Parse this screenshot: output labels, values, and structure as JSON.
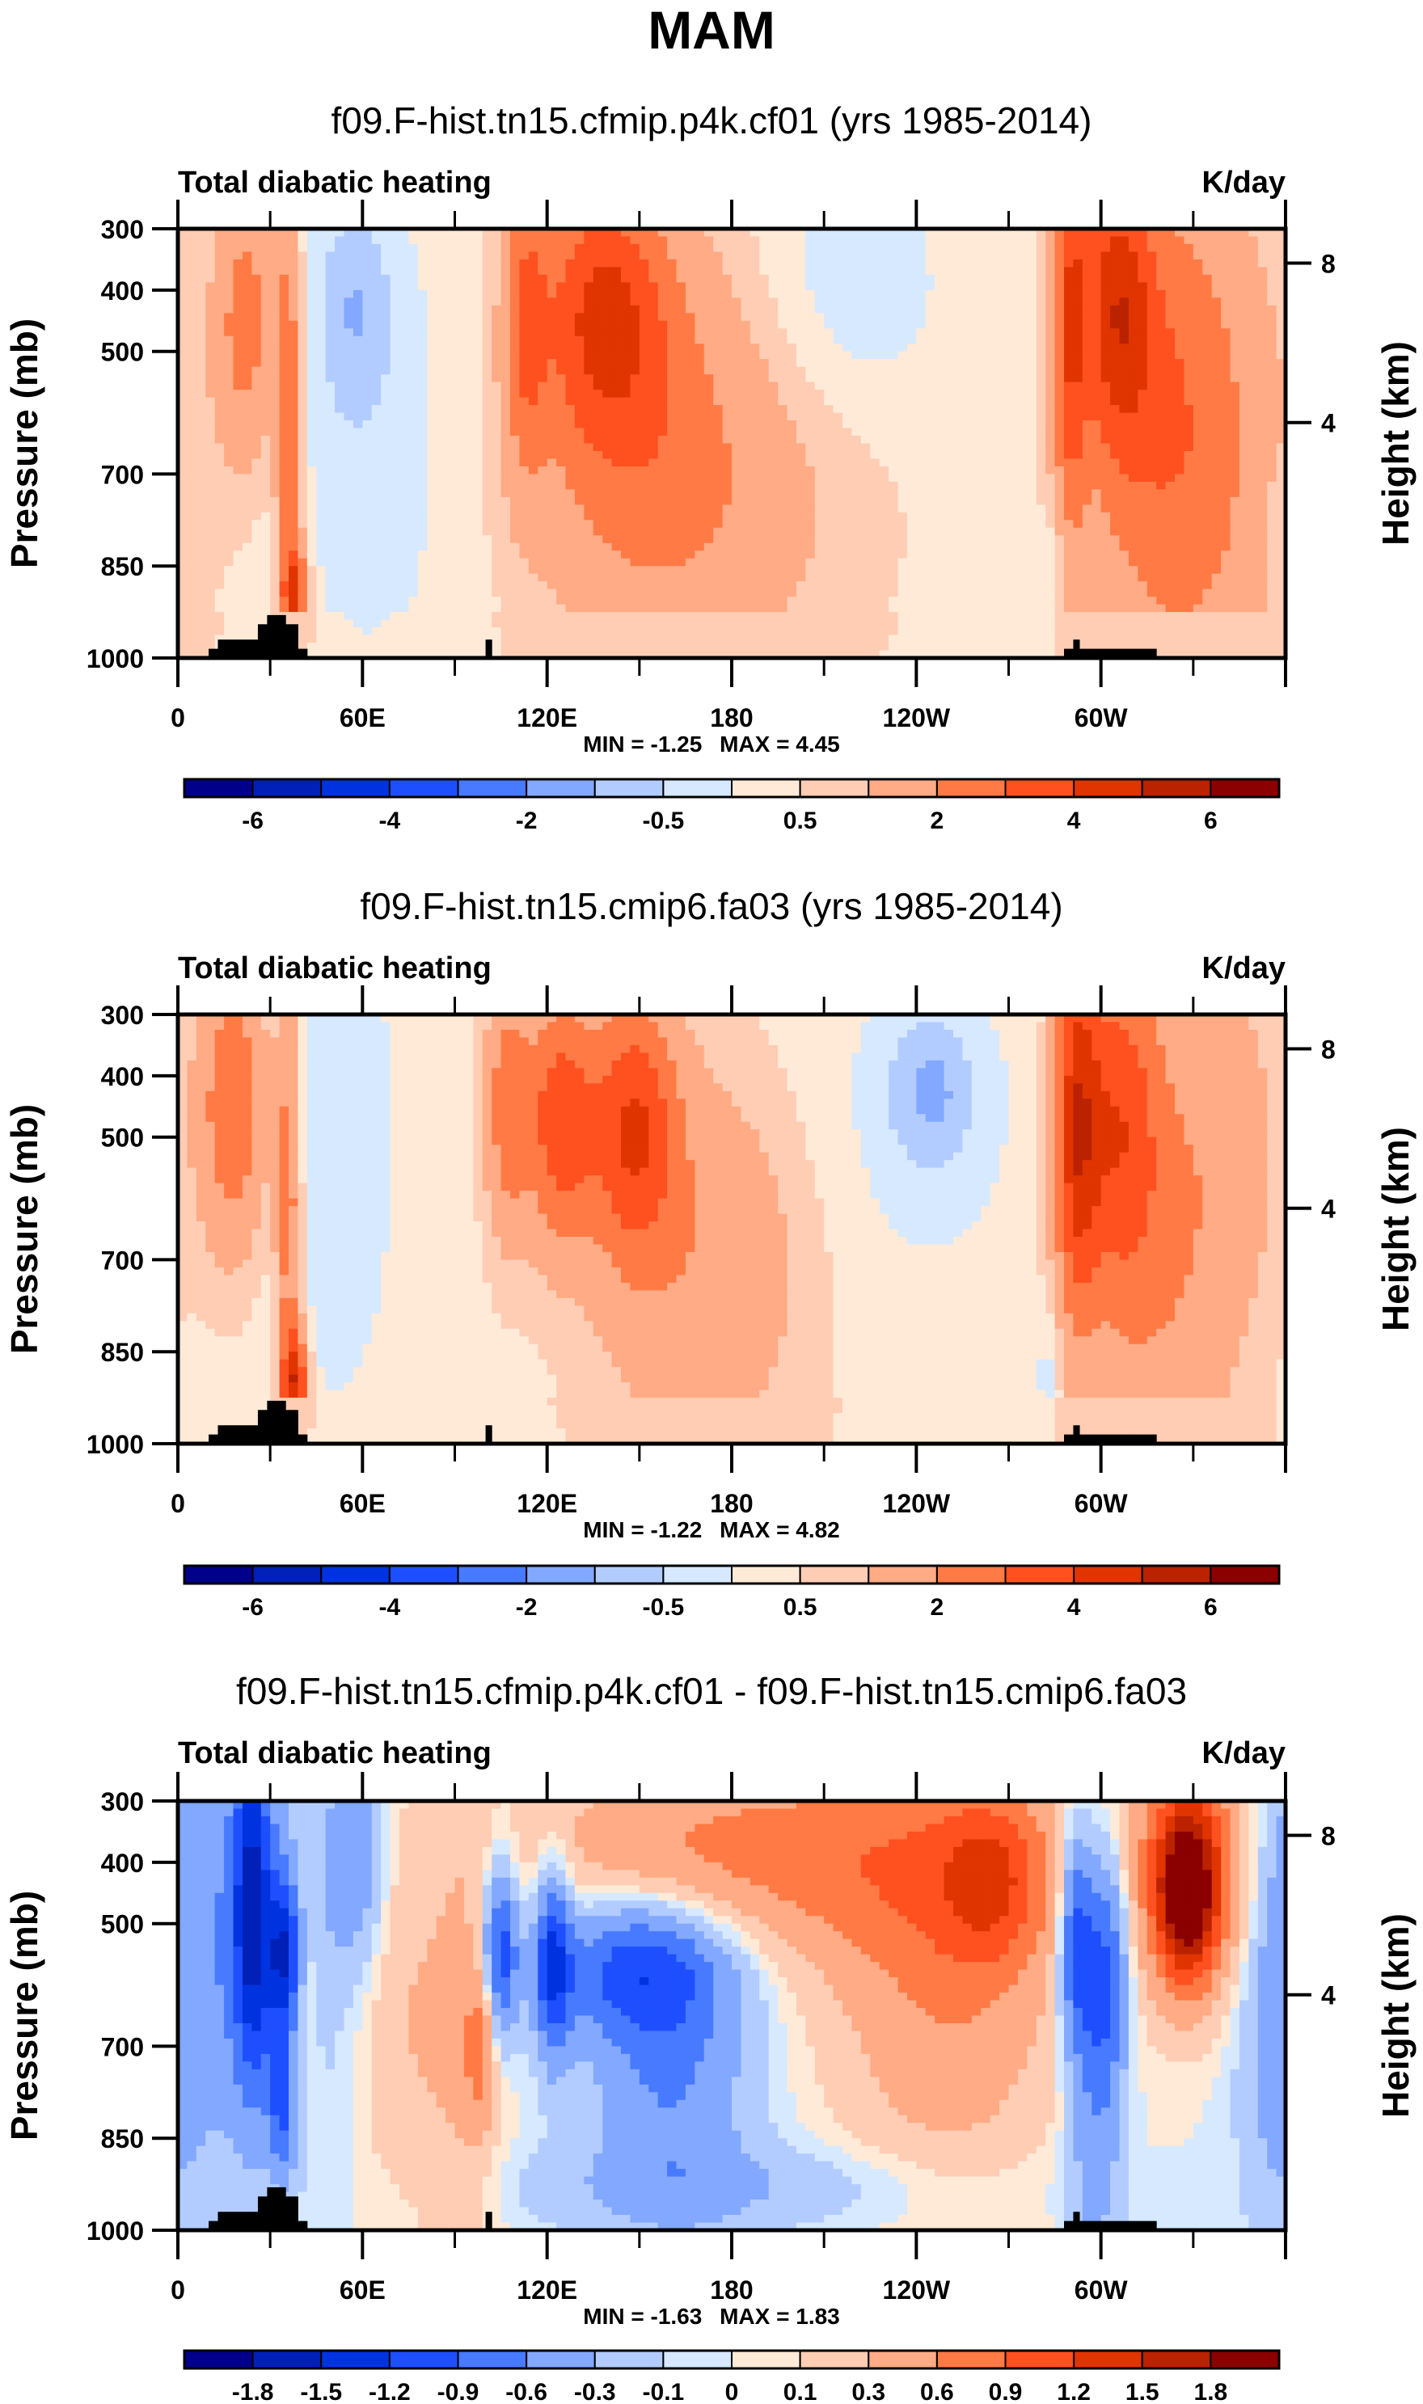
{
  "figure_title": "MAM",
  "chart_data": [
    {
      "type": "heatmap",
      "title": "f09.F-hist.tn15.cfmip.p4k.cf01 (yrs 1985-2014)",
      "left_label": "Total diabatic heating",
      "right_label": "K/day",
      "ylabel": "Pressure (mb)",
      "ylabel_right": "Height (km)",
      "x_ticks": [
        "0",
        "60E",
        "120E",
        "180",
        "120W",
        "60W"
      ],
      "x_tick_values": [
        0,
        60,
        120,
        180,
        240,
        300
      ],
      "xlim": [
        0,
        360
      ],
      "y_ticks": [
        "300",
        "400",
        "500",
        "700",
        "850",
        "1000"
      ],
      "y_tick_values": [
        300,
        400,
        500,
        700,
        850,
        1000
      ],
      "ylim": [
        1000,
        300
      ],
      "y_right_ticks": [
        "8",
        "4"
      ],
      "stats": {
        "min_label": "MIN =",
        "min": "-1.25",
        "max_label": "MAX =",
        "max": "4.45"
      },
      "colorbar": {
        "labels": [
          "-6",
          "-4",
          "-2",
          "-0.5",
          "0.5",
          "2",
          "4",
          "6"
        ],
        "label_every": 2,
        "levels": [
          -6,
          -5,
          -4,
          -3,
          -2,
          -1,
          -0.5,
          0,
          0.5,
          1,
          2,
          3,
          4,
          5,
          6
        ]
      },
      "features": {
        "heating_maxima_lon": [
          20,
          35,
          130,
          145,
          290,
          310
        ],
        "heating_max_pressure": 450,
        "cooling_minima_lon": [
          55,
          215
        ]
      }
    },
    {
      "type": "heatmap",
      "title": "f09.F-hist.tn15.cmip6.fa03 (yrs 1985-2014)",
      "left_label": "Total diabatic heating",
      "right_label": "K/day",
      "ylabel": "Pressure (mb)",
      "ylabel_right": "Height (km)",
      "x_ticks": [
        "0",
        "60E",
        "120E",
        "180",
        "120W",
        "60W"
      ],
      "x_tick_values": [
        0,
        60,
        120,
        180,
        240,
        300
      ],
      "xlim": [
        0,
        360
      ],
      "y_ticks": [
        "300",
        "400",
        "500",
        "700",
        "850",
        "1000"
      ],
      "y_tick_values": [
        300,
        400,
        500,
        700,
        850,
        1000
      ],
      "ylim": [
        1000,
        300
      ],
      "y_right_ticks": [
        "8",
        "4"
      ],
      "stats": {
        "min_label": "MIN =",
        "min": "-1.22",
        "max_label": "MAX =",
        "max": "4.82"
      },
      "colorbar": {
        "labels": [
          "-6",
          "-4",
          "-2",
          "-0.5",
          "0.5",
          "2",
          "4",
          "6"
        ],
        "label_every": 2,
        "levels": [
          -6,
          -5,
          -4,
          -3,
          -2,
          -1,
          -0.5,
          0,
          0.5,
          1,
          2,
          3,
          4,
          5,
          6
        ]
      },
      "features": {
        "heating_maxima_lon": [
          20,
          35,
          115,
          140,
          290,
          305
        ],
        "heating_max_pressure": 500,
        "cooling_minima_lon": [
          50,
          245
        ]
      }
    },
    {
      "type": "heatmap",
      "title": "f09.F-hist.tn15.cfmip.p4k.cf01 - f09.F-hist.tn15.cmip6.fa03",
      "left_label": "Total diabatic heating",
      "right_label": "K/day",
      "ylabel": "Pressure (mb)",
      "ylabel_right": "Height (km)",
      "x_ticks": [
        "0",
        "60E",
        "120E",
        "180",
        "120W",
        "60W"
      ],
      "x_tick_values": [
        0,
        60,
        120,
        180,
        240,
        300
      ],
      "xlim": [
        0,
        360
      ],
      "y_ticks": [
        "300",
        "400",
        "500",
        "700",
        "850",
        "1000"
      ],
      "y_tick_values": [
        300,
        400,
        500,
        700,
        850,
        1000
      ],
      "ylim": [
        1000,
        300
      ],
      "y_right_ticks": [
        "8",
        "4"
      ],
      "stats": {
        "min_label": "MIN =",
        "min": "-1.63",
        "max_label": "MAX =",
        "max": "1.83"
      },
      "colorbar": {
        "labels": [
          "-1.8",
          "-1.5",
          "-1.2",
          "-0.9",
          "-0.6",
          "-0.3",
          "-0.1",
          "0",
          "0.1",
          "0.3",
          "0.6",
          "0.9",
          "1.2",
          "1.5",
          "1.8"
        ],
        "label_every": 1,
        "levels": [
          -1.8,
          -1.5,
          -1.2,
          -0.9,
          -0.6,
          -0.3,
          -0.1,
          0,
          0.1,
          0.3,
          0.6,
          0.9,
          1.2,
          1.5,
          1.8
        ]
      },
      "features": {
        "heating_maxima_lon": [
          330
        ],
        "heating_max_pressure": 450,
        "cooling_minima_lon": [
          30,
          105,
          130,
          295
        ]
      }
    }
  ],
  "colors": [
    "#00008b",
    "#0020b8",
    "#0033e0",
    "#1e4fff",
    "#477aff",
    "#82a8ff",
    "#b3ccff",
    "#d6e9ff",
    "#ffead8",
    "#ffcdb4",
    "#ffab85",
    "#ff7a45",
    "#ff5020",
    "#e03500",
    "#ba2200",
    "#8b0000"
  ],
  "topography_color": "#000000"
}
